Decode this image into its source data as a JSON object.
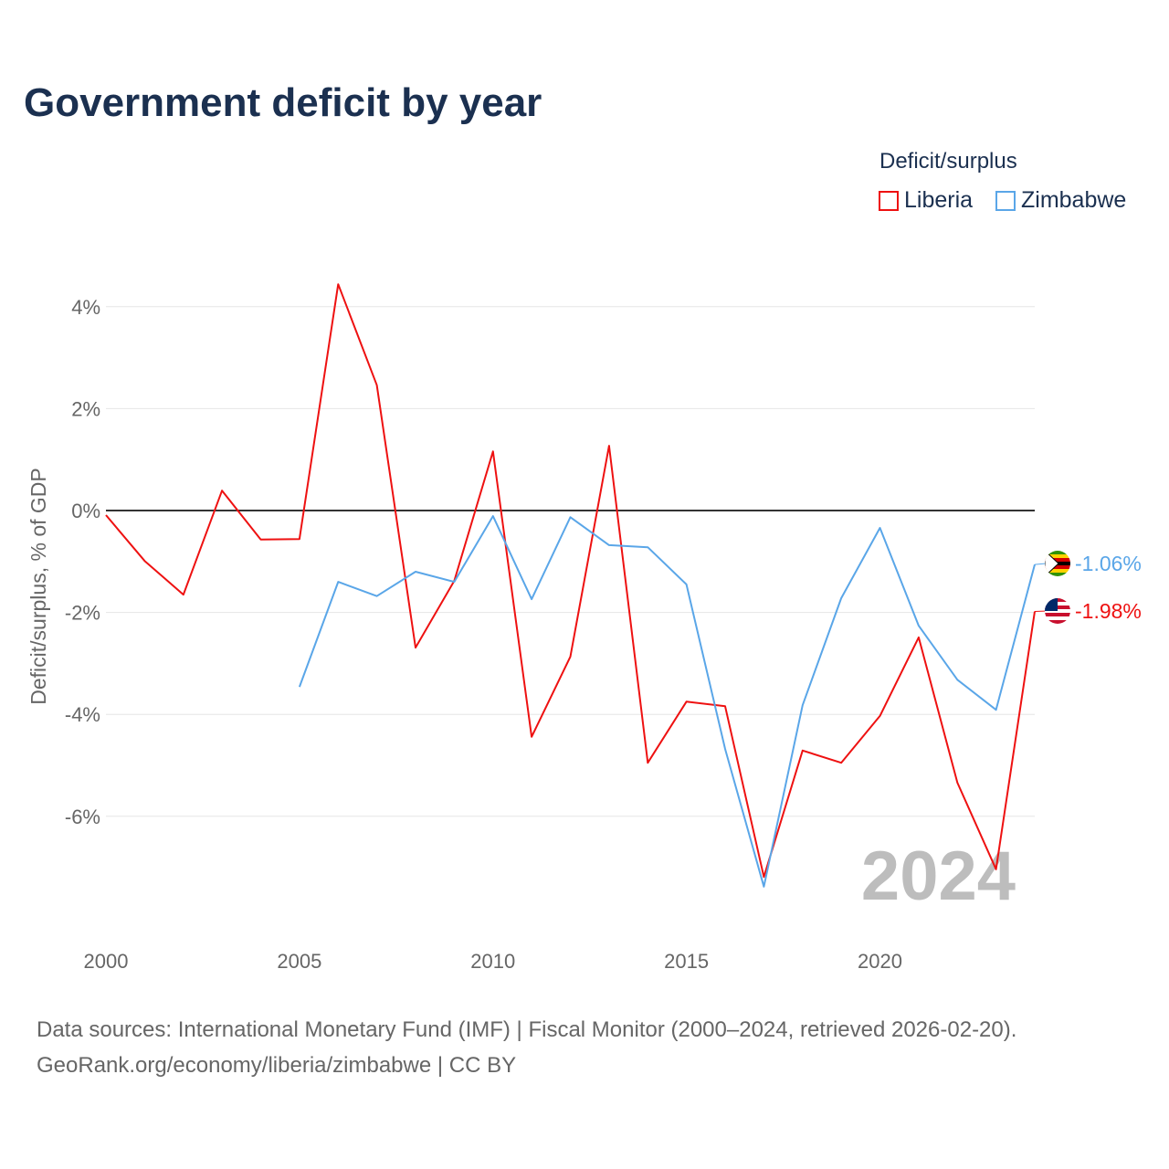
{
  "title": "Government deficit by year",
  "legend": {
    "title": "Deficit/surplus",
    "items": [
      {
        "label": "Liberia",
        "color": "#ee1111"
      },
      {
        "label": "Zimbabwe",
        "color": "#5aa6e8"
      }
    ]
  },
  "sources": {
    "line1": "Data sources: International Monetary Fund (IMF) | Fiscal Monitor (2000–2024, retrieved 2026-02-20).",
    "line2": "GeoRank.org/economy/liberia/zimbabwe | CC BY"
  },
  "chart_data": {
    "type": "line",
    "title": "Government deficit by year",
    "xlabel": "",
    "ylabel": "Deficit/surplus, % of GDP",
    "xlim": [
      2000,
      2024
    ],
    "ylim": [
      -8,
      4.5
    ],
    "x_ticks": [
      2000,
      2005,
      2010,
      2015,
      2020
    ],
    "x_tick_labels": [
      "2000",
      "2005",
      "2010",
      "2015",
      "2020"
    ],
    "y_ticks": [
      4,
      2,
      0,
      -2,
      -4,
      -6
    ],
    "y_tick_labels": [
      "4%",
      "2%",
      "0%",
      "-2%",
      "-4%",
      "-6%"
    ],
    "grid": true,
    "legend_position": "top-right",
    "watermark": "2024",
    "series": [
      {
        "name": "Liberia",
        "color": "#ee1111",
        "end_label": "-1.98%",
        "x": [
          2000,
          2001,
          2002,
          2003,
          2004,
          2005,
          2006,
          2007,
          2008,
          2009,
          2010,
          2011,
          2012,
          2013,
          2014,
          2015,
          2016,
          2017,
          2018,
          2019,
          2020,
          2021,
          2022,
          2023,
          2024
        ],
        "values": [
          -0.09,
          -0.99,
          -1.65,
          0.39,
          -0.57,
          -0.56,
          4.44,
          2.46,
          -2.69,
          -1.38,
          1.16,
          -4.44,
          -2.87,
          1.27,
          -4.95,
          -3.75,
          -3.84,
          -7.19,
          -4.71,
          -4.95,
          -4.03,
          -2.49,
          -5.34,
          -7.04,
          -1.98
        ]
      },
      {
        "name": "Zimbabwe",
        "color": "#5aa6e8",
        "end_label": "-1.06%",
        "x": [
          2005,
          2006,
          2007,
          2008,
          2009,
          2010,
          2011,
          2012,
          2013,
          2014,
          2015,
          2016,
          2017,
          2018,
          2019,
          2020,
          2021,
          2022,
          2023,
          2024
        ],
        "values": [
          -3.46,
          -1.4,
          -1.68,
          -1.2,
          -1.4,
          -0.11,
          -1.74,
          -0.13,
          -0.68,
          -0.72,
          -1.45,
          -4.68,
          -7.38,
          -3.82,
          -1.72,
          -0.34,
          -2.26,
          -3.32,
          -3.91,
          -1.06
        ]
      }
    ]
  }
}
